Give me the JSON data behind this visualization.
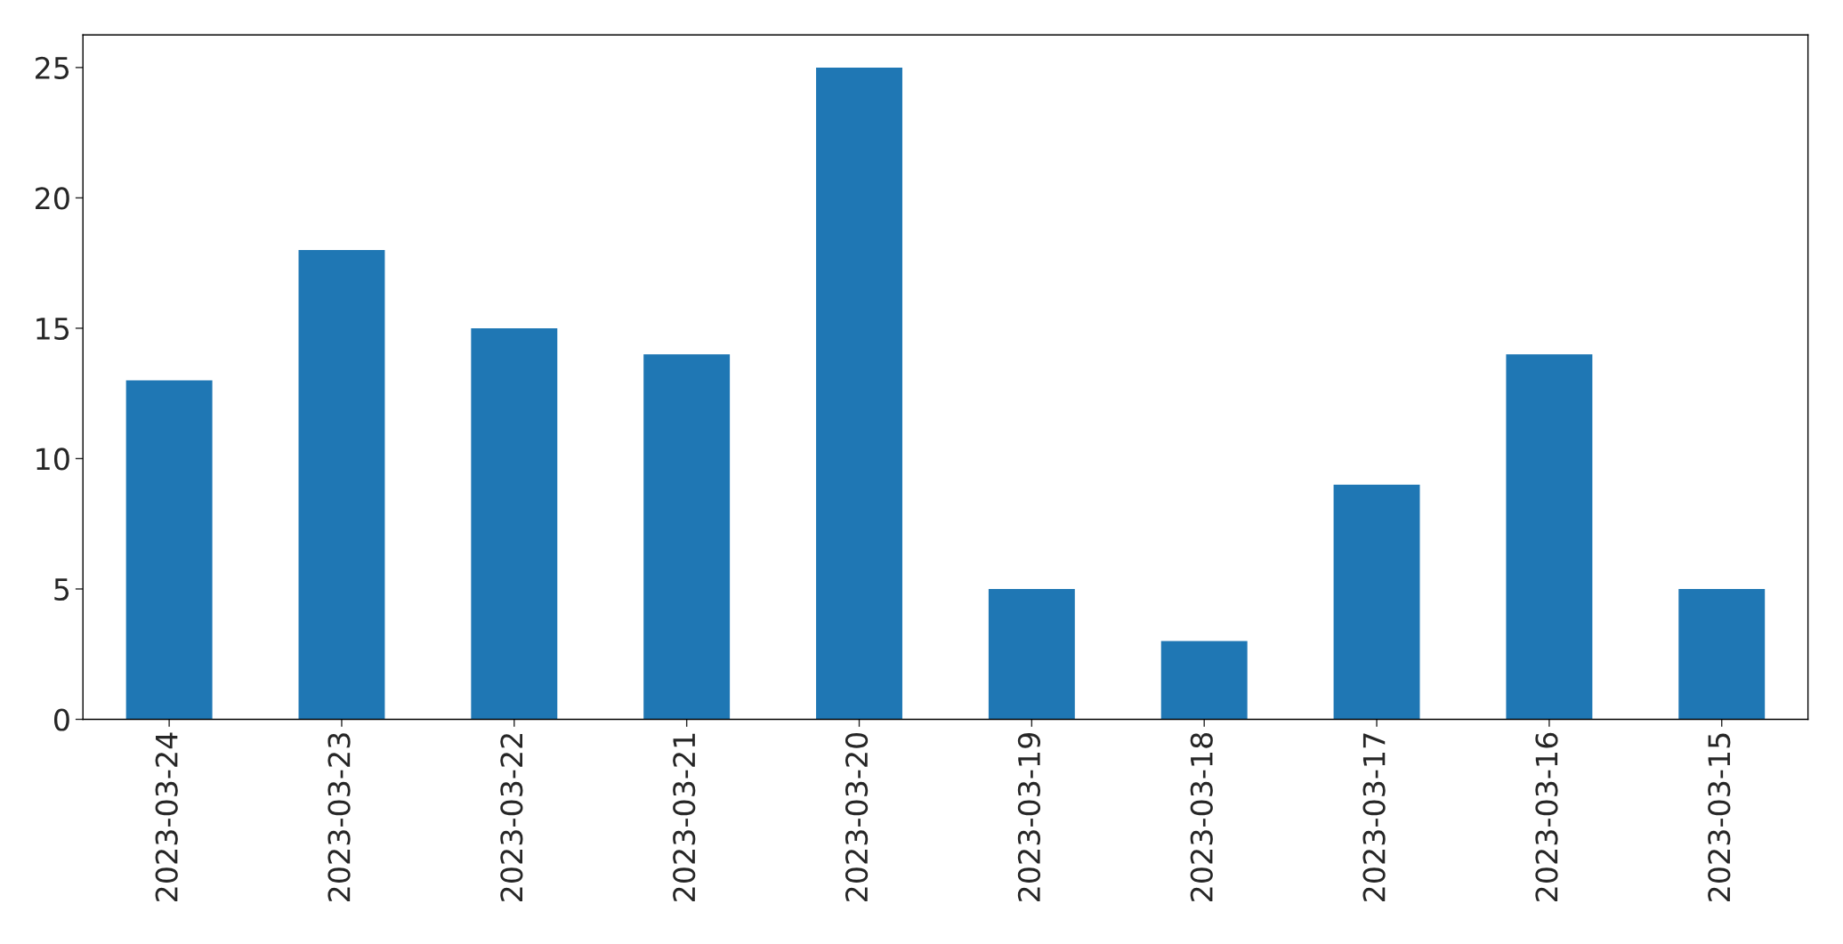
{
  "chart_data": {
    "type": "bar",
    "categories": [
      "2023-03-24",
      "2023-03-23",
      "2023-03-22",
      "2023-03-21",
      "2023-03-20",
      "2023-03-19",
      "2023-03-18",
      "2023-03-17",
      "2023-03-16",
      "2023-03-15"
    ],
    "values": [
      13,
      18,
      15,
      14,
      25,
      5,
      3,
      9,
      14,
      5
    ],
    "color": "#1f77b4",
    "ylim": [
      0,
      26.25
    ],
    "yticks": [
      0,
      5,
      10,
      15,
      20,
      25
    ],
    "grid": false
  }
}
